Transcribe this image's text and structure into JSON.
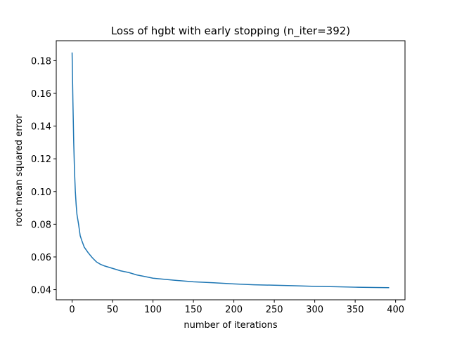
{
  "chart_data": {
    "type": "line",
    "title": "Loss of hgbt with early stopping (n_iter=392)",
    "x_label": "number of iterations",
    "y_label": "root mean squared error",
    "x": [
      0,
      1,
      2,
      3,
      4,
      5,
      6,
      8,
      10,
      12,
      15,
      20,
      25,
      30,
      35,
      40,
      50,
      60,
      70,
      80,
      90,
      100,
      125,
      150,
      175,
      200,
      225,
      250,
      275,
      300,
      325,
      350,
      375,
      392
    ],
    "series": [
      {
        "name": "loss",
        "color": "#1f77b4",
        "values": [
          0.185,
          0.155,
          0.13,
          0.112,
          0.1,
          0.092,
          0.086,
          0.08,
          0.073,
          0.07,
          0.066,
          0.0625,
          0.0595,
          0.057,
          0.0555,
          0.0545,
          0.053,
          0.0515,
          0.0505,
          0.049,
          0.048,
          0.047,
          0.0458,
          0.0448,
          0.0442,
          0.0435,
          0.043,
          0.0427,
          0.0424,
          0.042,
          0.0418,
          0.0415,
          0.0413,
          0.0412
        ]
      }
    ],
    "xlim": [
      -19.6,
      411.6
    ],
    "ylim": [
      0.0338,
      0.1922
    ],
    "xticks": [
      0,
      50,
      100,
      150,
      200,
      250,
      300,
      350,
      400
    ],
    "yticks": [
      0.04,
      0.06,
      0.08,
      {
        "value": 0.1,
        "label": "0.10"
      },
      0.12,
      0.14,
      0.16,
      0.18
    ],
    "grid": false
  }
}
